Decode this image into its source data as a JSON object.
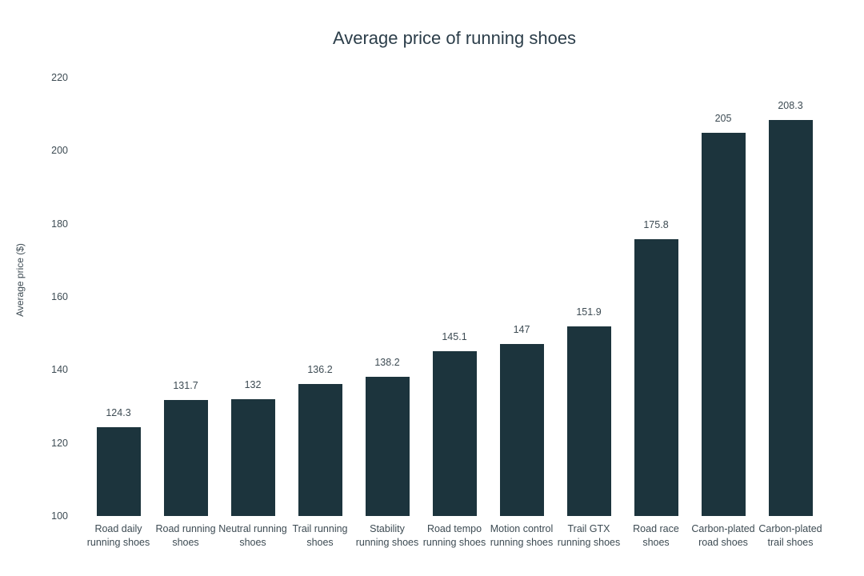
{
  "chart_data": {
    "type": "bar",
    "title": "Average price of running shoes",
    "xlabel": "",
    "ylabel": "Average price ($)",
    "ylim": [
      100,
      220
    ],
    "yticks": [
      100,
      120,
      140,
      160,
      180,
      200,
      220
    ],
    "grid": false,
    "legend": false,
    "bar_color": "#1c343d",
    "title_color": "#2c3e4a",
    "label_color": "#3d4b53",
    "categories": [
      "Road daily\nrunning shoes",
      "Road running\nshoes",
      "Neutral running\nshoes",
      "Trail running\nshoes",
      "Stability\nrunning shoes",
      "Road tempo\nrunning shoes",
      "Motion control\nrunning shoes",
      "Trail GTX\nrunning shoes",
      "Road race\nshoes",
      "Carbon-plated\nroad shoes",
      "Carbon-plated\ntrail shoes"
    ],
    "values": [
      124.3,
      131.7,
      132,
      136.2,
      138.2,
      145.1,
      147,
      151.9,
      175.8,
      205,
      208.3
    ]
  }
}
